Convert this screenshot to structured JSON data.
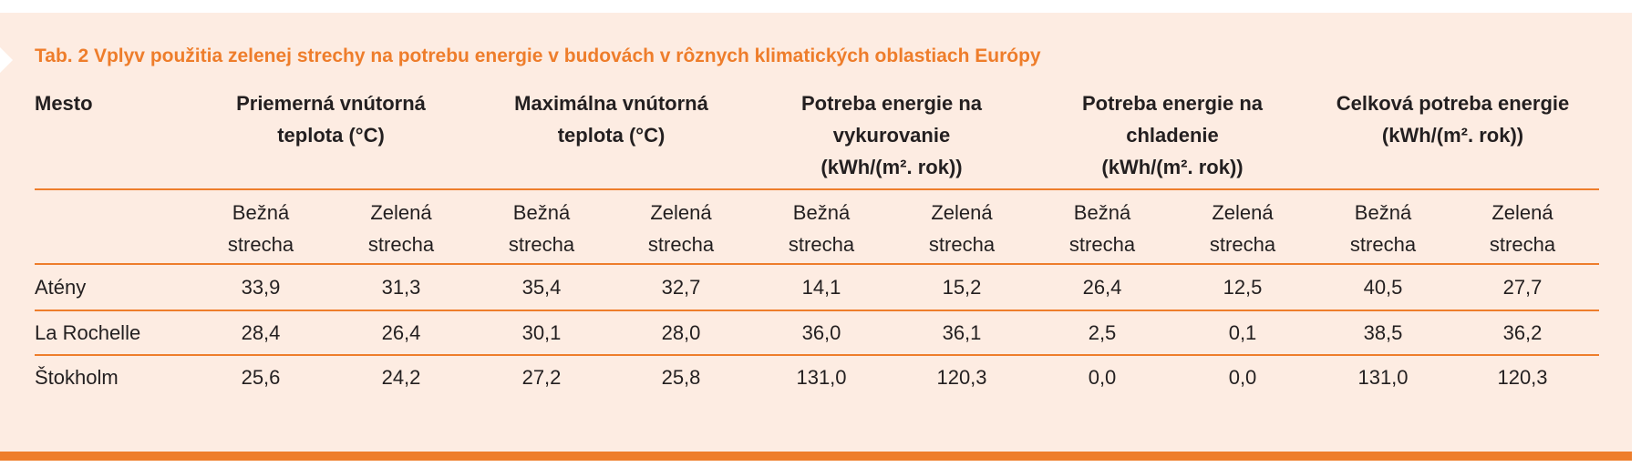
{
  "title": "Tab. 2 Vplyv použitia zelenej strechy na potrebu energie v budovách v rôznych klimatických oblastiach Európy",
  "table": {
    "city_header": "Mesto",
    "groups": [
      {
        "lines": [
          "Priemerná vnútorná",
          "teplota (°C)"
        ],
        "sub": [
          [
            "Bežná",
            "strecha"
          ],
          [
            "Zelená",
            "strecha"
          ]
        ]
      },
      {
        "lines": [
          "Maximálna vnútorná",
          "teplota (°C)"
        ],
        "sub": [
          [
            "Bežná",
            "strecha"
          ],
          [
            "Zelená",
            "strecha"
          ]
        ]
      },
      {
        "lines": [
          "Potreba energie na",
          "vykurovanie",
          "(kWh/(m². rok))"
        ],
        "sub": [
          [
            "Bežná",
            "strecha"
          ],
          [
            "Zelená",
            "strecha"
          ]
        ]
      },
      {
        "lines": [
          "Potreba energie na",
          "chladenie",
          "(kWh/(m². rok))"
        ],
        "sub": [
          [
            "Bežná",
            "strecha"
          ],
          [
            "Zelená",
            "strecha"
          ]
        ]
      },
      {
        "lines": [
          "Celková potreba energie",
          "(kWh/(m². rok))"
        ],
        "sub": [
          [
            "Bežná",
            "strecha"
          ],
          [
            "Zelená",
            "strecha"
          ]
        ]
      }
    ],
    "rows": [
      {
        "city": "Atény",
        "values": [
          "33,9",
          "31,3",
          "35,4",
          "32,7",
          "14,1",
          "15,2",
          "26,4",
          "12,5",
          "40,5",
          "27,7"
        ]
      },
      {
        "city": "La Rochelle",
        "values": [
          "28,4",
          "26,4",
          "30,1",
          "28,0",
          "36,0",
          "36,1",
          "2,5",
          "0,1",
          "38,5",
          "36,2"
        ]
      },
      {
        "city": "Štokholm",
        "values": [
          "25,6",
          "24,2",
          "27,2",
          "25,8",
          "131,0",
          "120,3",
          "0,0",
          "0,0",
          "131,0",
          "120,3"
        ]
      }
    ]
  }
}
